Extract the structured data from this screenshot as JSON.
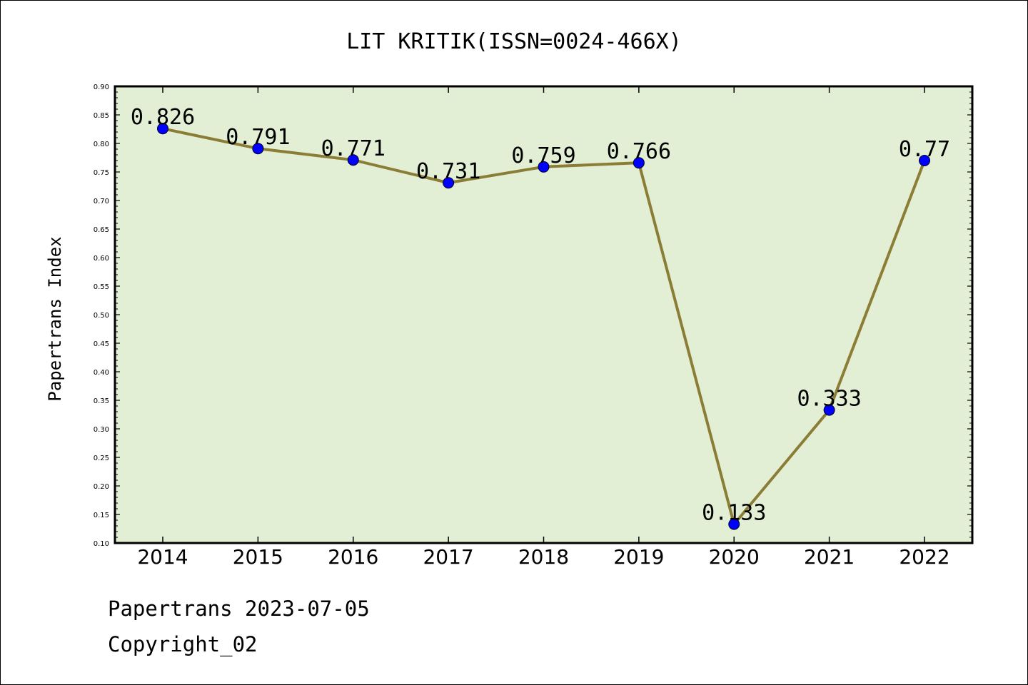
{
  "chart_data": {
    "type": "line",
    "title": "LIT KRITIK(ISSN=0024-466X)",
    "xlabel": "",
    "ylabel": "Papertrans Index",
    "categories": [
      "2014",
      "2015",
      "2016",
      "2017",
      "2018",
      "2019",
      "2020",
      "2021",
      "2022"
    ],
    "values": [
      0.826,
      0.791,
      0.771,
      0.731,
      0.759,
      0.766,
      0.133,
      0.333,
      0.77
    ],
    "data_labels": [
      "0.826",
      "0.791",
      "0.771",
      "0.731",
      "0.759",
      "0.766",
      "0.133",
      "0.333",
      "0.77"
    ],
    "ylim": [
      0.1,
      0.9
    ],
    "yticks": [
      "0.10",
      "0.15",
      "0.20",
      "0.25",
      "0.30",
      "0.35",
      "0.40",
      "0.45",
      "0.50",
      "0.55",
      "0.60",
      "0.65",
      "0.70",
      "0.75",
      "0.80",
      "0.85",
      "0.90"
    ],
    "grid": false,
    "legend": "none",
    "colors": {
      "plot_background": "#e2efd5",
      "line": "#8b7d35",
      "marker": "#0000ff",
      "axes": "#000000"
    }
  },
  "footer": {
    "line1": "Papertrans 2023-07-05",
    "line2": "Copyright_02"
  }
}
